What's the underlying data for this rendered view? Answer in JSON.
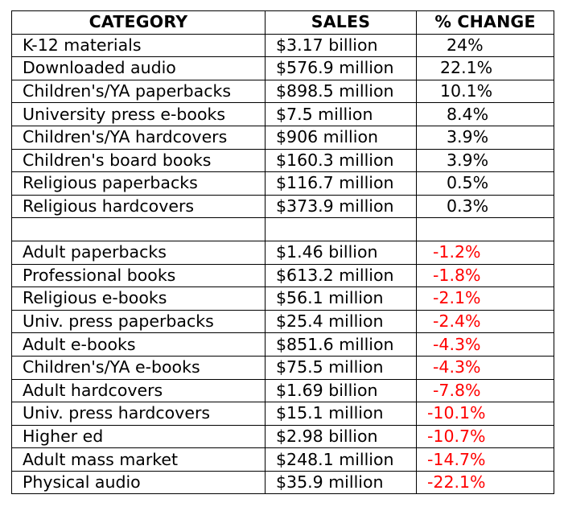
{
  "headers": {
    "category": "CATEGORY",
    "sales": "SALES",
    "change": "% CHANGE"
  },
  "colors": {
    "negative_change": "#ff0000",
    "positive_change": "#000000",
    "grid": "#000000"
  },
  "gains": [
    {
      "category": "K-12 materials",
      "sales": "$3.17 billion",
      "change": "24%"
    },
    {
      "category": "Downloaded audio",
      "sales": "$576.9 million",
      "change": "22.1%"
    },
    {
      "category": "Children's/YA paperbacks",
      "sales": "$898.5 million",
      "change": "10.1%"
    },
    {
      "category": "University press e-books",
      "sales": "$7.5 million",
      "change": "8.4%"
    },
    {
      "category": "Children's/YA hardcovers",
      "sales": "$906 million",
      "change": "3.9%"
    },
    {
      "category": "Children's board books",
      "sales": "$160.3 million",
      "change": "3.9%"
    },
    {
      "category": "Religious paperbacks",
      "sales": "$116.7 million",
      "change": "0.5%"
    },
    {
      "category": "Religious hardcovers",
      "sales": "$373.9 million",
      "change": "0.3%"
    }
  ],
  "declines": [
    {
      "category": "Adult paperbacks",
      "sales": "$1.46 billion",
      "change": "-1.2%"
    },
    {
      "category": "Professional books",
      "sales": "$613.2 million",
      "change": "-1.8%"
    },
    {
      "category": "Religious e-books",
      "sales": "$56.1 million",
      "change": "-2.1%"
    },
    {
      "category": "Univ. press paperbacks",
      "sales": "$25.4 million",
      "change": "-2.4%"
    },
    {
      "category": "Adult e-books",
      "sales": "$851.6 million",
      "change": "-4.3%"
    },
    {
      "category": "Children's/YA e-books",
      "sales": "$75.5 million",
      "change": "-4.3%"
    },
    {
      "category": "Adult hardcovers",
      "sales": "$1.69 billion",
      "change": "-7.8%"
    },
    {
      "category": "Univ. press hardcovers",
      "sales": "$15.1 million",
      "change": "-10.1%"
    },
    {
      "category": "Higher ed",
      "sales": "$2.98 billion",
      "change": "-10.7%"
    },
    {
      "category": "Adult mass market",
      "sales": "$248.1 million",
      "change": "-14.7%"
    },
    {
      "category": "Physical audio",
      "sales": "$35.9 million",
      "change": "-22.1%"
    }
  ]
}
